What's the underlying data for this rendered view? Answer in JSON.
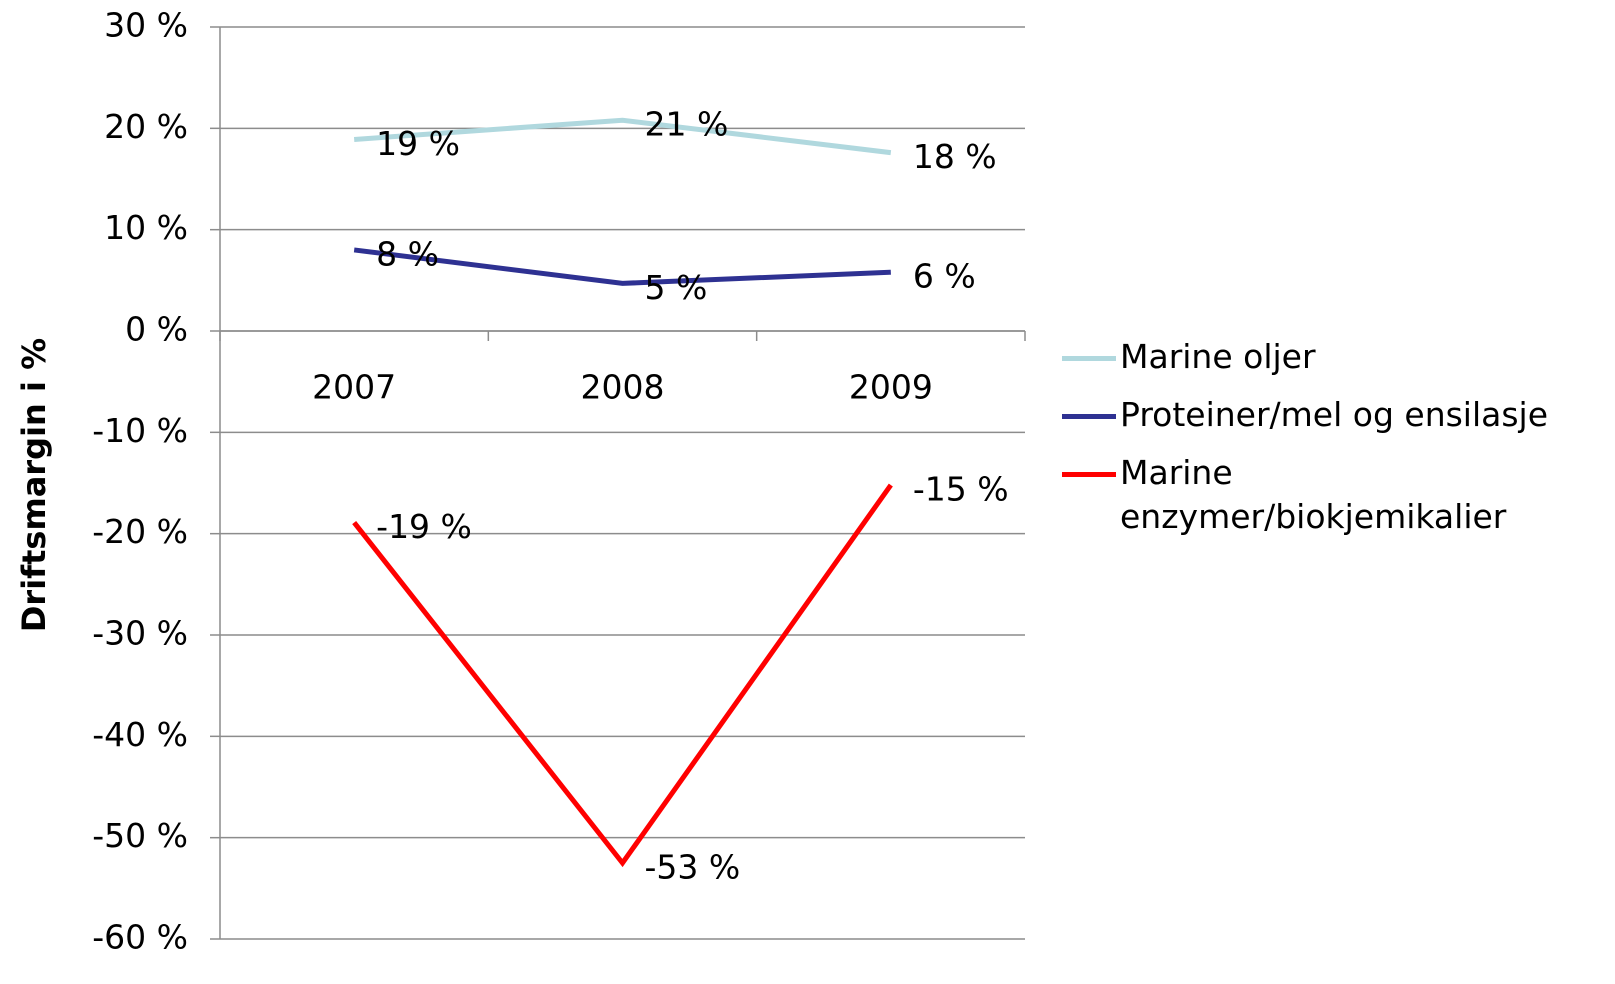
{
  "chart_data": {
    "type": "line",
    "y_axis_label": "Driftsmargin i %",
    "categories": [
      "2007",
      "2008",
      "2009"
    ],
    "series": [
      {
        "name": "Marine oljer",
        "color": "#b0d8de",
        "values": [
          18.9,
          20.8,
          17.6
        ],
        "value_labels": [
          "19 %",
          "21 %",
          "18 %"
        ]
      },
      {
        "name": "Proteiner/mel og ensilasje",
        "color": "#2e3192",
        "values": [
          8.0,
          4.7,
          5.8
        ],
        "value_labels": [
          "8 %",
          "5 %",
          "6 %"
        ]
      },
      {
        "name": "Marine enzymer/biokjemikalier",
        "color": "#ff0000",
        "values": [
          -18.9,
          -52.5,
          -15.2
        ],
        "value_labels": [
          "-19 %",
          "-53 %",
          "-15 %"
        ]
      }
    ],
    "ylim": [
      -60,
      30
    ],
    "yticks": [
      {
        "value": -60,
        "label": "-60 %"
      },
      {
        "value": -50,
        "label": "-50 %"
      },
      {
        "value": -40,
        "label": "-40 %"
      },
      {
        "value": -30,
        "label": "-30 %"
      },
      {
        "value": -20,
        "label": "-20 %"
      },
      {
        "value": -10,
        "label": "-10 %"
      },
      {
        "value": 0,
        "label": "0 %"
      },
      {
        "value": 10,
        "label": "10 %"
      },
      {
        "value": 20,
        "label": "20 %"
      },
      {
        "value": 30,
        "label": "30 %"
      }
    ],
    "grid": true,
    "legend": "right"
  }
}
